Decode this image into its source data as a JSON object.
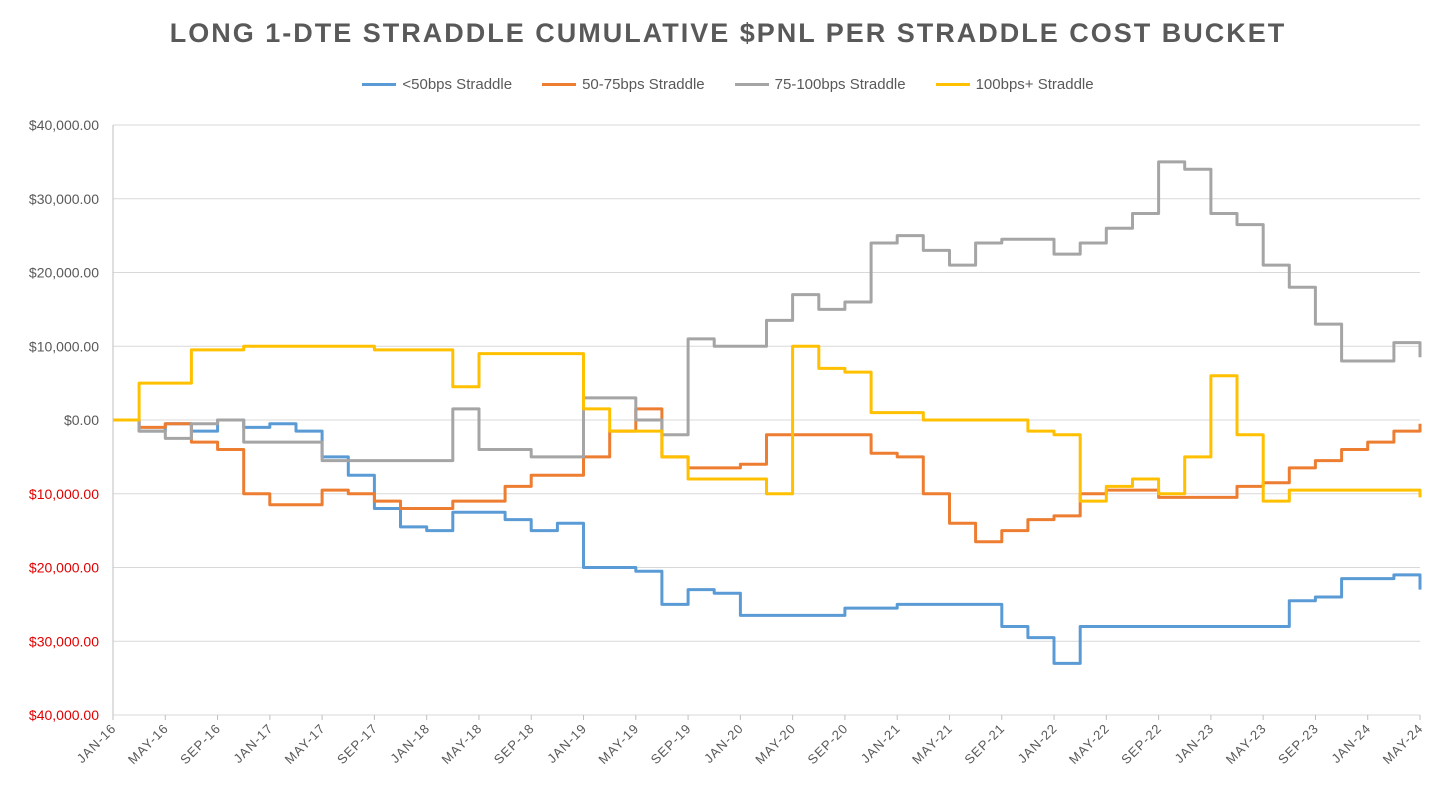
{
  "chart_data": {
    "type": "line",
    "title": "LONG 1-DTE STRADDLE CUMULATIVE $PNL PER STRADDLE COST BUCKET",
    "xlabel": "",
    "ylabel": "",
    "ylim": [
      -40000,
      40000
    ],
    "yticks": [
      {
        "value": 40000,
        "label": "$40,000.00"
      },
      {
        "value": 30000,
        "label": "$30,000.00"
      },
      {
        "value": 20000,
        "label": "$20,000.00"
      },
      {
        "value": 10000,
        "label": "$10,000.00"
      },
      {
        "value": 0,
        "label": "$0.00"
      },
      {
        "value": -10000,
        "label": "$10,000.00"
      },
      {
        "value": -20000,
        "label": "$20,000.00"
      },
      {
        "value": -30000,
        "label": "$30,000.00"
      },
      {
        "value": -40000,
        "label": "$40,000.00"
      }
    ],
    "x_start": "2016-01",
    "x_end": "2024-05",
    "xticks": [
      "JAN-16",
      "MAY-16",
      "SEP-16",
      "JAN-17",
      "MAY-17",
      "SEP-17",
      "JAN-18",
      "MAY-18",
      "SEP-18",
      "JAN-19",
      "MAY-19",
      "SEP-19",
      "JAN-20",
      "MAY-20",
      "SEP-20",
      "JAN-21",
      "MAY-21",
      "SEP-21",
      "JAN-22",
      "MAY-22",
      "SEP-22",
      "JAN-23",
      "MAY-23",
      "SEP-23",
      "JAN-24",
      "MAY-24"
    ],
    "grid": true,
    "legend_position": "top-center",
    "negative_label_color": "#e00000",
    "series": [
      {
        "name": "<50bps Straddle",
        "color": "#5b9bd5",
        "x": [
          "2016-01",
          "2016-03",
          "2016-05",
          "2016-07",
          "2016-09",
          "2016-11",
          "2017-01",
          "2017-03",
          "2017-05",
          "2017-07",
          "2017-09",
          "2017-11",
          "2018-01",
          "2018-03",
          "2018-05",
          "2018-07",
          "2018-09",
          "2018-11",
          "2019-01",
          "2019-03",
          "2019-05",
          "2019-07",
          "2019-09",
          "2019-11",
          "2020-01",
          "2020-03",
          "2020-05",
          "2020-07",
          "2020-09",
          "2020-11",
          "2021-01",
          "2021-03",
          "2021-05",
          "2021-07",
          "2021-09",
          "2021-11",
          "2022-01",
          "2022-03",
          "2022-05",
          "2022-07",
          "2022-09",
          "2022-11",
          "2023-01",
          "2023-03",
          "2023-05",
          "2023-07",
          "2023-09",
          "2023-11",
          "2024-01",
          "2024-03",
          "2024-05"
        ],
        "y": [
          0,
          -1500,
          -500,
          -1500,
          0,
          -1000,
          -500,
          -1500,
          -5000,
          -7500,
          -12000,
          -14500,
          -15000,
          -12500,
          -12500,
          -13500,
          -15000,
          -14000,
          -20000,
          -20000,
          -20500,
          -25000,
          -23000,
          -23500,
          -26500,
          -26500,
          -26500,
          -26500,
          -25500,
          -25500,
          -25000,
          -25000,
          -25000,
          -25000,
          -28000,
          -29500,
          -33000,
          -28000,
          -28000,
          -28000,
          -28000,
          -28000,
          -28000,
          -28000,
          -28000,
          -24500,
          -24000,
          -21500,
          -21500,
          -21000,
          -23000
        ]
      },
      {
        "name": "50-75bps Straddle",
        "color": "#ed7d31",
        "x": [
          "2016-01",
          "2016-03",
          "2016-05",
          "2016-07",
          "2016-09",
          "2016-11",
          "2017-01",
          "2017-03",
          "2017-05",
          "2017-07",
          "2017-09",
          "2017-11",
          "2018-01",
          "2018-03",
          "2018-05",
          "2018-07",
          "2018-09",
          "2018-11",
          "2019-01",
          "2019-03",
          "2019-05",
          "2019-07",
          "2019-09",
          "2019-11",
          "2020-01",
          "2020-03",
          "2020-05",
          "2020-07",
          "2020-09",
          "2020-11",
          "2021-01",
          "2021-03",
          "2021-05",
          "2021-07",
          "2021-09",
          "2021-11",
          "2022-01",
          "2022-03",
          "2022-05",
          "2022-07",
          "2022-09",
          "2022-11",
          "2023-01",
          "2023-03",
          "2023-05",
          "2023-07",
          "2023-09",
          "2023-11",
          "2024-01",
          "2024-03",
          "2024-05"
        ],
        "y": [
          0,
          -1000,
          -500,
          -3000,
          -4000,
          -10000,
          -11500,
          -11500,
          -9500,
          -10000,
          -11000,
          -12000,
          -12000,
          -11000,
          -11000,
          -9000,
          -7500,
          -7500,
          -5000,
          -1500,
          1500,
          -5000,
          -6500,
          -6500,
          -6000,
          -2000,
          -2000,
          -2000,
          -2000,
          -4500,
          -5000,
          -10000,
          -14000,
          -16500,
          -15000,
          -13500,
          -13000,
          -10000,
          -9500,
          -9500,
          -10500,
          -10500,
          -10500,
          -9000,
          -8500,
          -6500,
          -5500,
          -4000,
          -3000,
          -1500,
          -500
        ]
      },
      {
        "name": "75-100bps Straddle",
        "color": "#a5a5a5",
        "x": [
          "2016-01",
          "2016-03",
          "2016-05",
          "2016-07",
          "2016-09",
          "2016-11",
          "2017-01",
          "2017-03",
          "2017-05",
          "2017-07",
          "2017-09",
          "2017-11",
          "2018-01",
          "2018-03",
          "2018-05",
          "2018-07",
          "2018-09",
          "2018-11",
          "2019-01",
          "2019-03",
          "2019-05",
          "2019-07",
          "2019-09",
          "2019-11",
          "2020-01",
          "2020-03",
          "2020-05",
          "2020-07",
          "2020-09",
          "2020-11",
          "2021-01",
          "2021-03",
          "2021-05",
          "2021-07",
          "2021-09",
          "2021-11",
          "2022-01",
          "2022-03",
          "2022-05",
          "2022-07",
          "2022-09",
          "2022-11",
          "2023-01",
          "2023-03",
          "2023-05",
          "2023-07",
          "2023-09",
          "2023-11",
          "2024-01",
          "2024-03",
          "2024-05"
        ],
        "y": [
          0,
          -1500,
          -2500,
          -500,
          0,
          -3000,
          -3000,
          -3000,
          -5500,
          -5500,
          -5500,
          -5500,
          -5500,
          1500,
          -4000,
          -4000,
          -5000,
          -5000,
          3000,
          3000,
          0,
          -2000,
          11000,
          10000,
          10000,
          13500,
          17000,
          15000,
          16000,
          24000,
          25000,
          23000,
          21000,
          24000,
          24500,
          24500,
          22500,
          24000,
          26000,
          28000,
          35000,
          34000,
          28000,
          26500,
          21000,
          18000,
          13000,
          8000,
          8000,
          10500,
          8500
        ]
      },
      {
        "name": "100bps+ Straddle",
        "color": "#ffc000",
        "x": [
          "2016-01",
          "2016-03",
          "2016-05",
          "2016-07",
          "2016-09",
          "2016-11",
          "2017-01",
          "2017-03",
          "2017-05",
          "2017-07",
          "2017-09",
          "2017-11",
          "2018-01",
          "2018-03",
          "2018-05",
          "2018-07",
          "2018-09",
          "2018-11",
          "2019-01",
          "2019-03",
          "2019-05",
          "2019-07",
          "2019-09",
          "2019-11",
          "2020-01",
          "2020-03",
          "2020-05",
          "2020-07",
          "2020-09",
          "2020-11",
          "2021-01",
          "2021-03",
          "2021-05",
          "2021-07",
          "2021-09",
          "2021-11",
          "2022-01",
          "2022-03",
          "2022-05",
          "2022-07",
          "2022-09",
          "2022-11",
          "2023-01",
          "2023-03",
          "2023-05",
          "2023-07",
          "2023-09",
          "2023-11",
          "2024-01",
          "2024-03",
          "2024-05"
        ],
        "y": [
          0,
          5000,
          5000,
          9500,
          9500,
          10000,
          10000,
          10000,
          10000,
          10000,
          9500,
          9500,
          9500,
          4500,
          9000,
          9000,
          9000,
          9000,
          1500,
          -1500,
          -1500,
          -5000,
          -8000,
          -8000,
          -8000,
          -10000,
          10000,
          7000,
          6500,
          1000,
          1000,
          0,
          0,
          0,
          0,
          -1500,
          -2000,
          -11000,
          -9000,
          -8000,
          -10000,
          -5000,
          6000,
          -2000,
          -11000,
          -9500,
          -9500,
          -9500,
          -9500,
          -9500,
          -10500
        ]
      }
    ]
  }
}
